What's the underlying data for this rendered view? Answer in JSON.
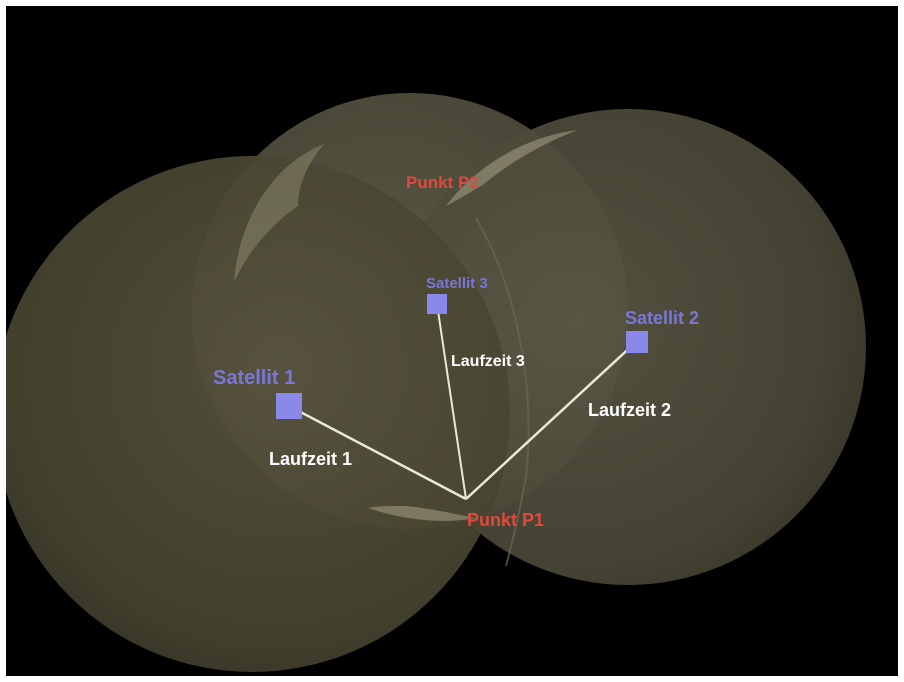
{
  "satellites": [
    {
      "label": "Satellit 1"
    },
    {
      "label": "Satellit 2"
    },
    {
      "label": "Satellit 3"
    }
  ],
  "travel_times": [
    {
      "label": "Laufzeit 1"
    },
    {
      "label": "Laufzeit 2"
    },
    {
      "label": "Laufzeit 3"
    }
  ],
  "points": [
    {
      "label": "Punkt P1"
    },
    {
      "label": "Punkt P2"
    }
  ],
  "colors": {
    "background": "#000000",
    "sphere": "#5a5646",
    "satellite": "#8a88e8",
    "satellite_label": "#7a78d6",
    "point_label": "#e04a3c",
    "line": "#e8ead8",
    "travel_label": "#ffffff"
  }
}
